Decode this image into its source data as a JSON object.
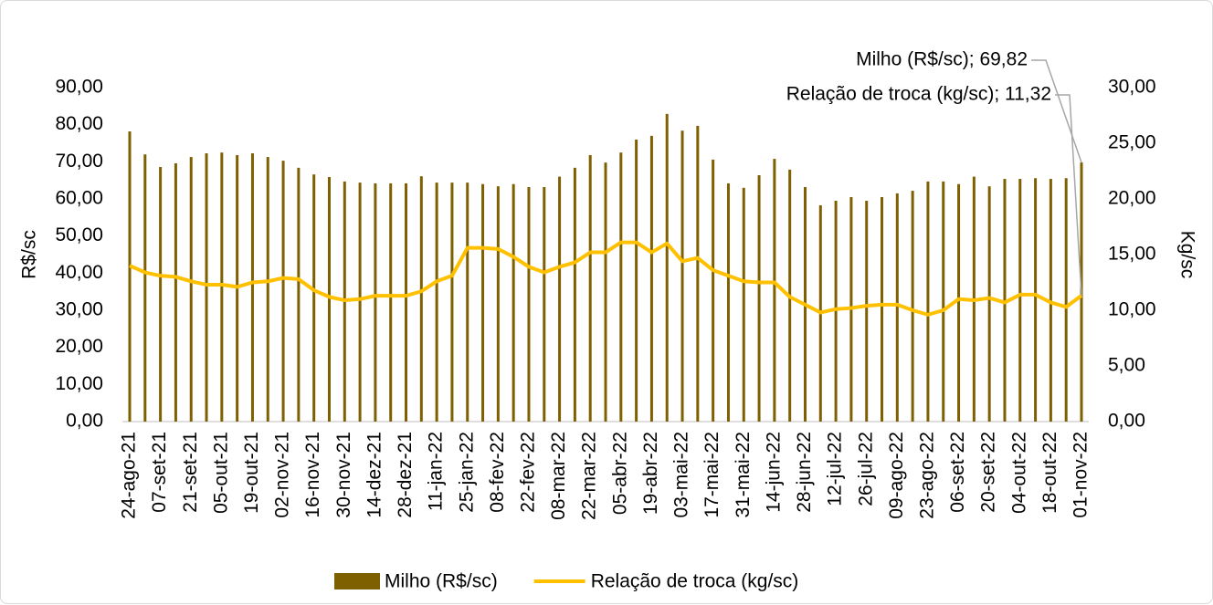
{
  "chart_data": {
    "type": "bar-line",
    "ylabel": "R$/sc",
    "y2label": "Kg/sc",
    "categories": [
      "24-ago-21",
      null,
      "07-set-21",
      null,
      "21-set-21",
      null,
      "05-out-21",
      null,
      "19-out-21",
      null,
      "02-nov-21",
      null,
      "16-nov-21",
      null,
      "30-nov-21",
      null,
      "14-dez-21",
      null,
      "28-dez-21",
      null,
      "11-jan-22",
      null,
      "25-jan-22",
      null,
      "08-fev-22",
      null,
      "22-fev-22",
      null,
      "08-mar-22",
      null,
      "22-mar-22",
      null,
      "05-abr-22",
      null,
      "19-abr-22",
      null,
      "03-mai-22",
      null,
      "17-mai-22",
      null,
      "31-mai-22",
      null,
      "14-jun-22",
      null,
      "28-jun-22",
      null,
      "12-jul-22",
      null,
      "26-jul-22",
      null,
      "09-ago-22",
      null,
      "23-ago-22",
      null,
      "06-set-22",
      null,
      "20-set-22",
      null,
      "04-out-22",
      null,
      "18-out-22",
      null,
      "01-nov-22"
    ],
    "series": [
      {
        "name": "Milho (R$/sc)",
        "type": "bar",
        "color": "#7f6000",
        "values": [
          78.2,
          72,
          68.6,
          69.6,
          71.3,
          72.3,
          72.5,
          71.8,
          72.3,
          71.3,
          70.3,
          68.4,
          66.6,
          65.9,
          64.7,
          64.4,
          64.2,
          64.2,
          64.2,
          66.1,
          64.4,
          64.4,
          64.4,
          64,
          63.4,
          64,
          63.2,
          63.2,
          66,
          68.4,
          71.8,
          69.8,
          72.5,
          76,
          77,
          82.9,
          78.4,
          79.7,
          70.6,
          64.2,
          63,
          66.4,
          70.8,
          67.9,
          63.2,
          58.3,
          59.5,
          60.5,
          59.5,
          60.5,
          61.5,
          62.2,
          64.7,
          64.7,
          64,
          66,
          63.4,
          65.4,
          65.4,
          65.6,
          65.4,
          65.6,
          69.82
        ]
      },
      {
        "name": "Relação de troca (kg/sc)",
        "type": "line",
        "axis": "y2",
        "color": "#ffc000",
        "values": [
          14.0,
          13.4,
          13.1,
          13.0,
          12.6,
          12.3,
          12.3,
          12.1,
          12.5,
          12.6,
          12.9,
          12.8,
          11.8,
          11.2,
          10.9,
          11.0,
          11.3,
          11.3,
          11.3,
          11.7,
          12.6,
          13.1,
          15.6,
          15.6,
          15.5,
          14.8,
          13.9,
          13.4,
          13.9,
          14.3,
          15.2,
          15.2,
          16.1,
          16.1,
          15.2,
          16.0,
          14.4,
          14.7,
          13.6,
          13.1,
          12.6,
          12.5,
          12.5,
          11.2,
          10.5,
          9.8,
          10.1,
          10.2,
          10.4,
          10.5,
          10.5,
          10.0,
          9.6,
          10.0,
          11.0,
          10.9,
          11.1,
          10.7,
          11.4,
          11.4,
          10.7,
          10.3,
          11.32
        ]
      }
    ],
    "annotations": [
      "Milho (R$/sc); 69,82",
      "Relação de troca (kg/sc); 11,32"
    ],
    "ylim": [
      0,
      90
    ],
    "yticks": [
      {
        "value": 0,
        "label": "0,00"
      },
      {
        "value": 10,
        "label": "10,00"
      },
      {
        "value": 20,
        "label": "20,00"
      },
      {
        "value": 30,
        "label": "30,00"
      },
      {
        "value": 40,
        "label": "40,00"
      },
      {
        "value": 50,
        "label": "50,00"
      },
      {
        "value": 60,
        "label": "60,00"
      },
      {
        "value": 70,
        "label": "70,00"
      },
      {
        "value": 80,
        "label": "80,00"
      },
      {
        "value": 90,
        "label": "90,00"
      }
    ],
    "y2lim": [
      0,
      30
    ],
    "y2ticks": [
      {
        "value": 0,
        "label": "0,00"
      },
      {
        "value": 5,
        "label": "5,00"
      },
      {
        "value": 10,
        "label": "10,00"
      },
      {
        "value": 15,
        "label": "15,00"
      },
      {
        "value": 20,
        "label": "20,00"
      },
      {
        "value": 25,
        "label": "25,00"
      },
      {
        "value": 30,
        "label": "30,00"
      }
    ],
    "grid": false,
    "legend": "bottom"
  }
}
